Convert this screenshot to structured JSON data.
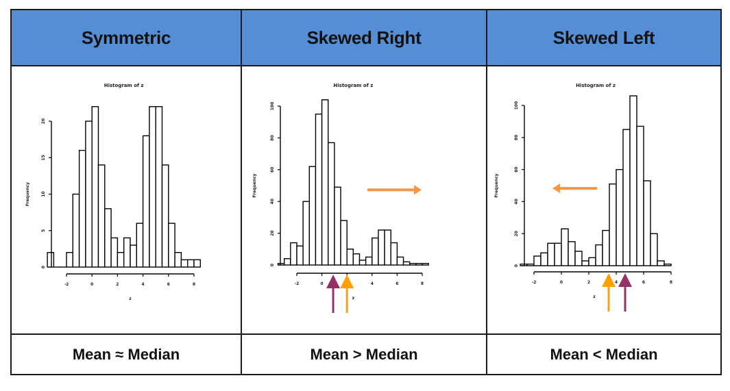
{
  "columns": [
    {
      "header": "Symmetric",
      "footer": "Mean ≈ Median"
    },
    {
      "header": "Skewed Right",
      "footer": "Mean > Median"
    },
    {
      "header": "Skewed Left",
      "footer": "Mean < Median"
    }
  ],
  "colors": {
    "header_bg": "#558ED5",
    "direction_arrow": "#F79646",
    "mean_arrow": "#FFA000",
    "median_arrow": "#953163"
  },
  "chart_data": [
    {
      "type": "bar",
      "title": "Histogram of z",
      "xlabel": "z",
      "ylabel": "Frequency",
      "bin_start": -3.5,
      "bin_width": 0.5,
      "values": [
        2,
        0,
        0,
        2,
        10,
        16,
        20,
        22,
        14,
        8,
        4,
        2,
        4,
        3,
        6,
        18,
        22,
        22,
        14,
        6,
        2,
        1,
        1,
        1
      ],
      "xticks": [
        -2,
        0,
        2,
        4,
        6,
        8
      ],
      "yticks": [
        0,
        5,
        10,
        15,
        20
      ],
      "ylim": [
        0,
        22
      ],
      "xlim": [
        -3.5,
        8.5
      ],
      "grid": false,
      "annotations": []
    },
    {
      "type": "bar",
      "title": "Histogram of z",
      "xlabel": "z",
      "ylabel": "Frequency",
      "bin_start": -3.5,
      "bin_width": 0.5,
      "values": [
        1,
        4,
        14,
        12,
        40,
        62,
        95,
        104,
        77,
        49,
        28,
        10,
        7,
        3,
        5,
        17,
        22,
        22,
        14,
        5,
        2,
        1,
        1,
        1
      ],
      "xticks": [
        -2,
        0,
        2,
        4,
        6,
        8
      ],
      "yticks": [
        0,
        20,
        40,
        60,
        80,
        100
      ],
      "ylim": [
        0,
        104
      ],
      "xlim": [
        -3.5,
        8.5
      ],
      "grid": false,
      "annotations": [
        {
          "type": "direction-arrow",
          "direction": "right",
          "label": "tail direction"
        },
        {
          "type": "marker-arrow",
          "name": "median",
          "x": 0.9
        },
        {
          "type": "marker-arrow",
          "name": "mean",
          "x": 2.0
        }
      ]
    },
    {
      "type": "bar",
      "title": "Histogram of z",
      "xlabel": "z",
      "ylabel": "Frequency",
      "bin_start": -3.0,
      "bin_width": 0.5,
      "values": [
        1,
        1,
        6,
        8,
        14,
        14,
        23,
        15,
        9,
        3,
        5,
        13,
        22,
        51,
        60,
        85,
        106,
        87,
        53,
        20,
        3,
        1
      ],
      "xticks": [
        -2,
        0,
        2,
        4,
        6,
        8
      ],
      "yticks": [
        0,
        20,
        40,
        60,
        80,
        100
      ],
      "ylim": [
        0,
        106
      ],
      "xlim": [
        -3.0,
        8.0
      ],
      "grid": false,
      "annotations": [
        {
          "type": "direction-arrow",
          "direction": "left",
          "label": "tail direction"
        },
        {
          "type": "marker-arrow",
          "name": "mean",
          "x": 3.45
        },
        {
          "type": "marker-arrow",
          "name": "median",
          "x": 4.65
        }
      ]
    }
  ]
}
